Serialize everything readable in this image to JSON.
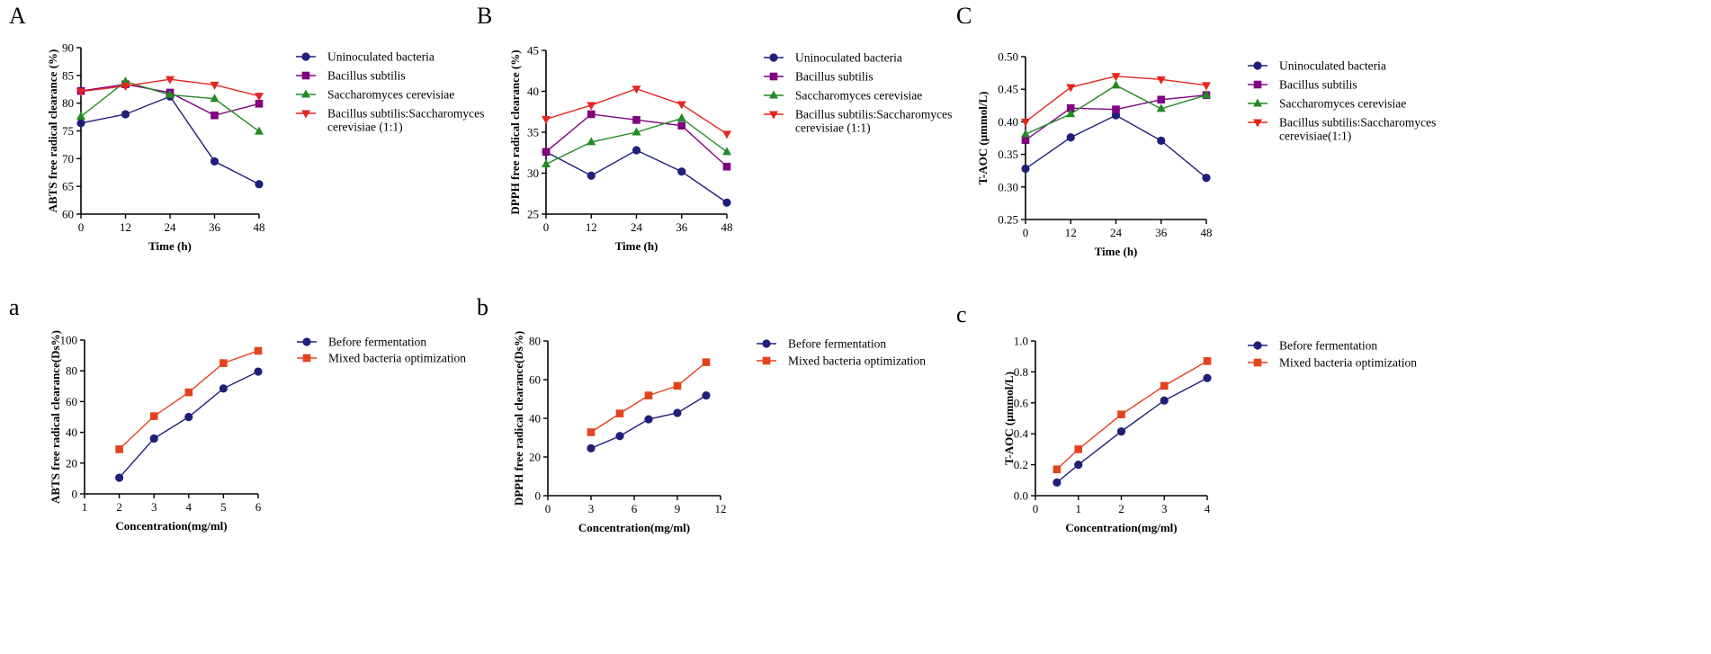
{
  "figure": {
    "colors": {
      "navy": "#1f1f7a",
      "purple": "#800080",
      "green": "#238b23",
      "red": "#e5261f",
      "orange": "#e3431c",
      "axis": "#000000"
    }
  },
  "chart_data": [
    {
      "panel_label": "A",
      "type": "line",
      "title": "",
      "xlabel": "Time (h)",
      "ylabel": "ABTS free radical clearance (%)",
      "xlim": [
        0,
        48
      ],
      "ylim": [
        60,
        90
      ],
      "xticks": [
        0,
        12,
        24,
        36,
        48
      ],
      "yticks": [
        60,
        65,
        70,
        75,
        80,
        85,
        90
      ],
      "x": [
        0,
        12,
        24,
        36,
        48
      ],
      "series": [
        {
          "name": "Uninoculated bacteria",
          "color": "navy",
          "marker": "circle",
          "values": [
            76.4,
            78.0,
            81.2,
            69.5,
            65.4
          ]
        },
        {
          "name": "Bacillus subtilis",
          "color": "purple",
          "marker": "square",
          "values": [
            82.2,
            83.4,
            81.9,
            77.8,
            79.9
          ]
        },
        {
          "name": "Saccharomyces cerevisiae",
          "color": "green",
          "marker": "triangle-up",
          "values": [
            77.6,
            83.9,
            81.5,
            80.8,
            74.9
          ]
        },
        {
          "name": "Bacillus subtilis:Saccharomyces cerevisiae (1:1)",
          "color": "red",
          "marker": "triangle-down",
          "values": [
            82.1,
            83.1,
            84.3,
            83.3,
            81.3
          ]
        }
      ],
      "legend": {
        "placement": "right",
        "entries": [
          {
            "lines": [
              "Uninoculated bacteria"
            ]
          },
          {
            "lines": [
              "Bacillus subtilis"
            ]
          },
          {
            "lines": [
              "Saccharomyces cerevisiae"
            ]
          },
          {
            "lines": [
              "Bacillus subtilis:Saccharomyces",
              "cerevisiae (1:1)"
            ]
          }
        ]
      }
    },
    {
      "panel_label": "B",
      "type": "line",
      "title": "",
      "xlabel": "Time (h)",
      "ylabel": "DPPH free radical clearance (%)",
      "xlim": [
        0,
        48
      ],
      "ylim": [
        25,
        45
      ],
      "xticks": [
        0,
        12,
        24,
        36,
        48
      ],
      "yticks": [
        25,
        30,
        35,
        40,
        45
      ],
      "x": [
        0,
        12,
        24,
        36,
        48
      ],
      "series": [
        {
          "name": "Uninoculated bacteria",
          "color": "navy",
          "marker": "circle",
          "values": [
            32.6,
            29.7,
            32.8,
            30.2,
            26.4
          ]
        },
        {
          "name": "Bacillus subtilis",
          "color": "purple",
          "marker": "square",
          "values": [
            32.6,
            37.2,
            36.5,
            35.8,
            30.8
          ]
        },
        {
          "name": "Saccharomyces cerevisiae",
          "color": "green",
          "marker": "triangle-up",
          "values": [
            31.1,
            33.8,
            35.0,
            36.7,
            32.6
          ]
        },
        {
          "name": "Bacillus subtilis:Saccharomyces cerevisiae (1:1)",
          "color": "red",
          "marker": "triangle-down",
          "values": [
            36.6,
            38.3,
            40.3,
            38.4,
            34.8
          ]
        }
      ],
      "legend": {
        "placement": "right",
        "entries": [
          {
            "lines": [
              "Uninoculated bacteria"
            ]
          },
          {
            "lines": [
              "Bacillus subtilis"
            ]
          },
          {
            "lines": [
              "Saccharomyces cerevisiae"
            ]
          },
          {
            "lines": [
              "Bacillus subtilis:Saccharomyces",
              "cerevisiae (1:1)"
            ]
          }
        ]
      }
    },
    {
      "panel_label": "C",
      "type": "line",
      "title": "",
      "xlabel": "Time (h)",
      "ylabel": "T-AOC (μmmol/L)",
      "xlim": [
        0,
        48
      ],
      "ylim": [
        0.25,
        0.5
      ],
      "xticks": [
        0,
        12,
        24,
        36,
        48
      ],
      "yticks": [
        0.25,
        0.3,
        0.35,
        0.4,
        0.45,
        0.5
      ],
      "yticks_fmt": 2,
      "x": [
        0,
        12,
        24,
        36,
        48
      ],
      "series": [
        {
          "name": "Uninoculated bacteria",
          "color": "navy",
          "marker": "circle",
          "values": [
            0.328,
            0.376,
            0.41,
            0.371,
            0.314
          ]
        },
        {
          "name": "Bacillus subtilis",
          "color": "purple",
          "marker": "square",
          "values": [
            0.372,
            0.421,
            0.419,
            0.434,
            0.441
          ]
        },
        {
          "name": "Saccharomyces cerevisiae",
          "color": "green",
          "marker": "triangle-up",
          "values": [
            0.381,
            0.412,
            0.456,
            0.42,
            0.441
          ]
        },
        {
          "name": "Bacillus subtilis:Saccharomyces cerevisiae(1:1)",
          "color": "red",
          "marker": "triangle-down",
          "values": [
            0.4,
            0.453,
            0.47,
            0.465,
            0.456
          ]
        }
      ],
      "legend": {
        "placement": "right",
        "entries": [
          {
            "lines": [
              "Uninoculated bacteria"
            ]
          },
          {
            "lines": [
              "Bacillus subtilis"
            ]
          },
          {
            "lines": [
              "Saccharomyces cerevisiae"
            ]
          },
          {
            "lines": [
              "Bacillus subtilis:Saccharomyces",
              "cerevisiae(1:1)"
            ]
          }
        ]
      }
    },
    {
      "panel_label": "a",
      "type": "line",
      "title": "",
      "xlabel": "Concentration(mg/ml)",
      "ylabel": "ABTS free radical clearance(Ds%)",
      "xlim": [
        1,
        6
      ],
      "ylim": [
        0,
        100
      ],
      "xticks": [
        1,
        2,
        3,
        4,
        5,
        6
      ],
      "yticks": [
        0,
        20,
        40,
        60,
        80,
        100
      ],
      "series": [
        {
          "name": "Before fermentation",
          "color": "navy",
          "marker": "circle",
          "x": [
            2,
            3,
            4,
            5,
            6
          ],
          "values": [
            10.5,
            36,
            50,
            68.5,
            79.5
          ]
        },
        {
          "name": "Mixed bacteria optimization",
          "color": "orange",
          "marker": "square",
          "x": [
            2,
            3,
            4,
            5,
            6
          ],
          "values": [
            29,
            50.5,
            66,
            85,
            93
          ]
        }
      ],
      "legend": {
        "placement": "right",
        "entries": [
          {
            "lines": [
              "Before fermentation"
            ]
          },
          {
            "lines": [
              "Mixed bacteria optimization"
            ]
          }
        ]
      }
    },
    {
      "panel_label": "b",
      "type": "line",
      "title": "",
      "xlabel": "Concentration(mg/ml)",
      "ylabel": "DPPH free radical clearance(Ds%)",
      "xlim": [
        0,
        12
      ],
      "ylim": [
        0,
        80
      ],
      "xticks": [
        0,
        3,
        6,
        9,
        12
      ],
      "yticks": [
        0,
        20,
        40,
        60,
        80
      ],
      "series": [
        {
          "name": "Before fermentation",
          "color": "navy",
          "marker": "circle",
          "x": [
            3,
            5,
            7,
            9,
            11
          ],
          "values": [
            24.5,
            30.8,
            39.5,
            42.8,
            51.8
          ]
        },
        {
          "name": "Mixed bacteria optimization",
          "color": "orange",
          "marker": "square",
          "x": [
            3,
            5,
            7,
            9,
            11
          ],
          "values": [
            32.8,
            42.5,
            51.8,
            56.8,
            69
          ]
        }
      ],
      "legend": {
        "placement": "right",
        "entries": [
          {
            "lines": [
              "Before fermentation"
            ]
          },
          {
            "lines": [
              "Mixed bacteria optimization"
            ]
          }
        ]
      }
    },
    {
      "panel_label": "c",
      "type": "line",
      "title": "",
      "xlabel": "Concentration(mg/ml)",
      "ylabel": "T-AOC (μmmol/L)",
      "xlim": [
        0,
        4
      ],
      "ylim": [
        0,
        1
      ],
      "xticks": [
        0,
        1,
        2,
        3,
        4
      ],
      "yticks": [
        0,
        0.2,
        0.4,
        0.6,
        0.8,
        1.0
      ],
      "yticks_fmt": 1,
      "series": [
        {
          "name": "Before fermentation",
          "color": "navy",
          "marker": "circle",
          "x": [
            0.5,
            1,
            2,
            3,
            4
          ],
          "values": [
            0.085,
            0.2,
            0.415,
            0.615,
            0.76
          ]
        },
        {
          "name": "Mixed bacteria optimization",
          "color": "orange",
          "marker": "square",
          "x": [
            0.5,
            1,
            2,
            3,
            4
          ],
          "values": [
            0.17,
            0.3,
            0.525,
            0.71,
            0.87
          ]
        }
      ],
      "legend": {
        "placement": "right",
        "entries": [
          {
            "lines": [
              "Before fermentation"
            ]
          },
          {
            "lines": [
              "Mixed bacteria optimization"
            ]
          }
        ]
      }
    }
  ]
}
